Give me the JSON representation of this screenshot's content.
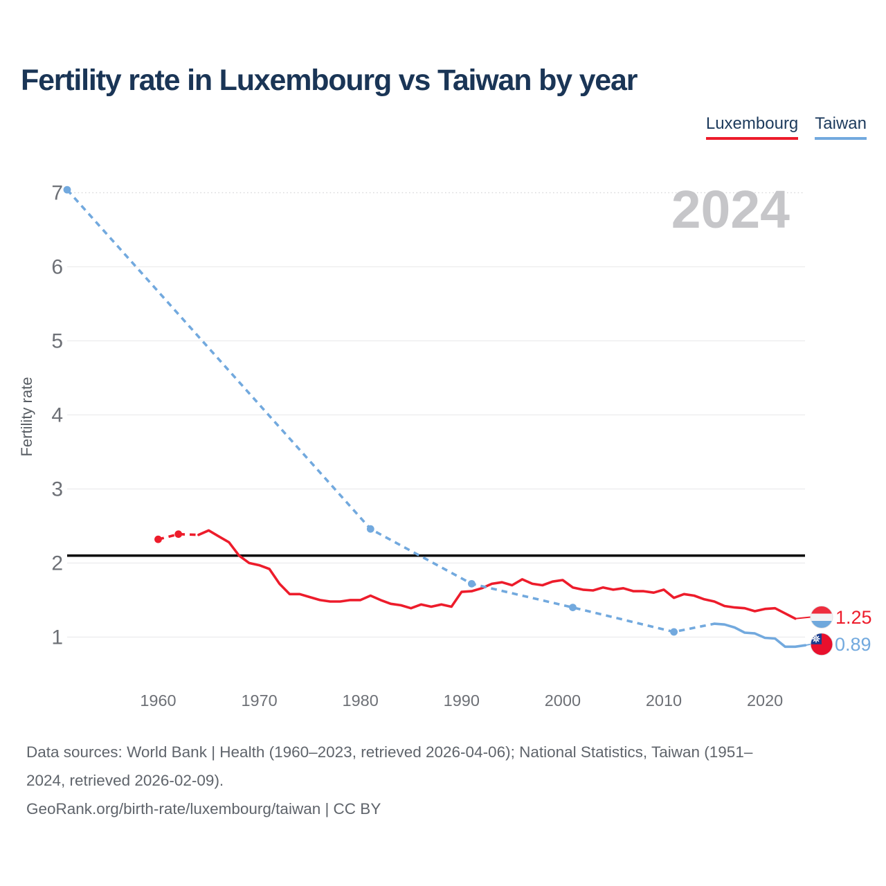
{
  "header": {
    "title": "Fertility rate in Luxembourg vs Taiwan by year"
  },
  "legend": {
    "items": [
      {
        "label": "Luxembourg",
        "color": "#ed1c2b"
      },
      {
        "label": "Taiwan",
        "color": "#72a9de"
      }
    ]
  },
  "chart_data": {
    "type": "line",
    "title": "Fertility rate in Luxembourg vs Taiwan by year",
    "xlabel": "",
    "ylabel": "Fertility rate",
    "x_ticks": [
      1960,
      1970,
      1980,
      1990,
      2000,
      2010,
      2020
    ],
    "y_ticks": [
      1,
      2,
      3,
      4,
      5,
      6,
      7
    ],
    "xlim": [
      1951,
      2024.5
    ],
    "ylim": [
      0.5,
      7.25
    ],
    "grid": true,
    "watermark": "2024",
    "reference_line": {
      "value": 2.1,
      "color": "#0d0d0d"
    },
    "series": [
      {
        "name": "Luxembourg",
        "color": "#ed1c2b",
        "end_label": "1.25",
        "points_dashed": [
          [
            1960,
            2.32
          ],
          [
            1962,
            2.39
          ],
          [
            1964,
            2.38
          ]
        ],
        "markers": [
          [
            1960,
            2.32
          ],
          [
            1962,
            2.39
          ]
        ],
        "points_solid": [
          [
            1964,
            2.38
          ],
          [
            1965,
            2.44
          ],
          [
            1966,
            2.36
          ],
          [
            1967,
            2.28
          ],
          [
            1968,
            2.1
          ],
          [
            1969,
            2.0
          ],
          [
            1970,
            1.97
          ],
          [
            1971,
            1.92
          ],
          [
            1972,
            1.72
          ],
          [
            1973,
            1.58
          ],
          [
            1974,
            1.58
          ],
          [
            1975,
            1.54
          ],
          [
            1976,
            1.5
          ],
          [
            1977,
            1.48
          ],
          [
            1978,
            1.48
          ],
          [
            1979,
            1.5
          ],
          [
            1980,
            1.5
          ],
          [
            1981,
            1.56
          ],
          [
            1982,
            1.5
          ],
          [
            1983,
            1.45
          ],
          [
            1984,
            1.43
          ],
          [
            1985,
            1.39
          ],
          [
            1986,
            1.44
          ],
          [
            1987,
            1.41
          ],
          [
            1988,
            1.44
          ],
          [
            1989,
            1.41
          ],
          [
            1990,
            1.61
          ],
          [
            1991,
            1.62
          ],
          [
            1992,
            1.66
          ],
          [
            1993,
            1.72
          ],
          [
            1994,
            1.74
          ],
          [
            1995,
            1.7
          ],
          [
            1996,
            1.78
          ],
          [
            1997,
            1.72
          ],
          [
            1998,
            1.7
          ],
          [
            1999,
            1.75
          ],
          [
            2000,
            1.77
          ],
          [
            2001,
            1.67
          ],
          [
            2002,
            1.64
          ],
          [
            2003,
            1.63
          ],
          [
            2004,
            1.67
          ],
          [
            2005,
            1.64
          ],
          [
            2006,
            1.66
          ],
          [
            2007,
            1.62
          ],
          [
            2008,
            1.62
          ],
          [
            2009,
            1.6
          ],
          [
            2010,
            1.64
          ],
          [
            2011,
            1.53
          ],
          [
            2012,
            1.58
          ],
          [
            2013,
            1.56
          ],
          [
            2014,
            1.51
          ],
          [
            2015,
            1.48
          ],
          [
            2016,
            1.42
          ],
          [
            2017,
            1.4
          ],
          [
            2018,
            1.39
          ],
          [
            2019,
            1.35
          ],
          [
            2020,
            1.38
          ],
          [
            2021,
            1.39
          ],
          [
            2022,
            1.32
          ],
          [
            2023,
            1.25
          ]
        ]
      },
      {
        "name": "Taiwan",
        "color": "#72a9de",
        "end_label": "0.89",
        "points_dashed": [
          [
            1951,
            7.04
          ],
          [
            1981,
            2.46
          ],
          [
            1991,
            1.72
          ],
          [
            2001,
            1.4
          ],
          [
            2011,
            1.07
          ],
          [
            2015,
            1.18
          ]
        ],
        "markers": [
          [
            1951,
            7.04
          ],
          [
            1981,
            2.46
          ],
          [
            1991,
            1.72
          ],
          [
            2001,
            1.4
          ],
          [
            2011,
            1.07
          ]
        ],
        "points_solid": [
          [
            2015,
            1.18
          ],
          [
            2016,
            1.17
          ],
          [
            2017,
            1.13
          ],
          [
            2018,
            1.06
          ],
          [
            2019,
            1.05
          ],
          [
            2020,
            0.99
          ],
          [
            2021,
            0.98
          ],
          [
            2022,
            0.87
          ],
          [
            2023,
            0.87
          ],
          [
            2024,
            0.89
          ]
        ]
      }
    ]
  },
  "footer": {
    "lines": [
      "Data sources: World Bank | Health (1960–2023, retrieved 2026-04-06); National Statistics, Taiwan (1951–",
      "2024, retrieved 2026-02-09).",
      "GeoRank.org/birth-rate/luxembourg/taiwan | CC BY"
    ]
  }
}
